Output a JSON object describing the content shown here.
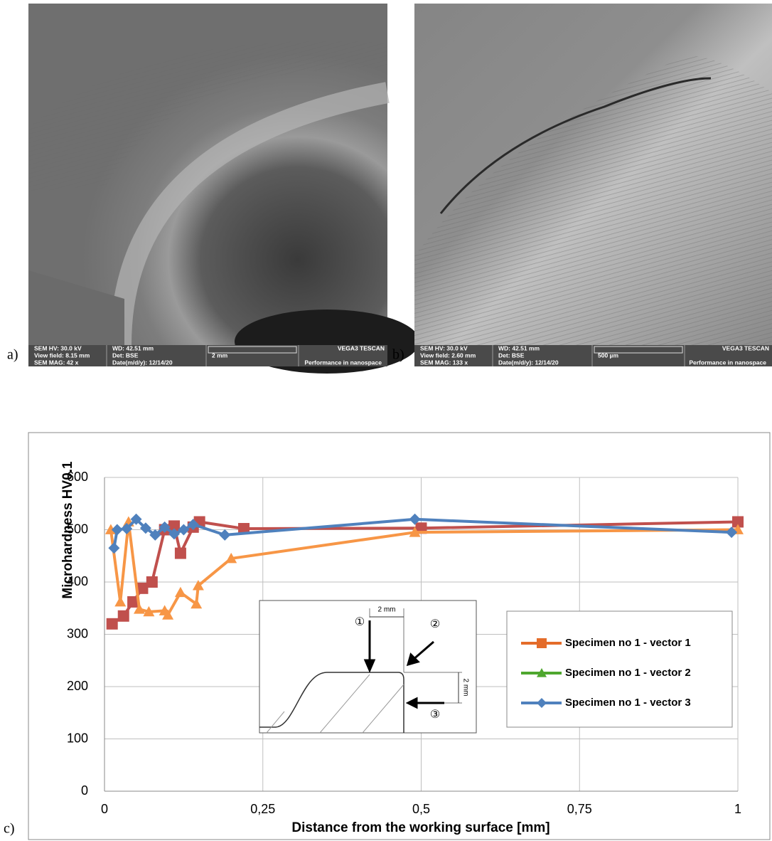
{
  "images": [
    {
      "label": "a)",
      "info": [
        "SEM HV: 30.0 kV",
        "WD: 42.51 mm",
        "VEGA3 TESCAN",
        "View field: 8.15 mm",
        "Det: BSE",
        "2 mm",
        "SEM MAG: 42 x",
        "Date(m/d/y): 12/14/20",
        "Performance in nanospace"
      ]
    },
    {
      "label": "b)",
      "info": [
        "SEM HV: 30.0 kV",
        "WD: 42.51 mm",
        "VEGA3 TESCAN",
        "View field: 2.60 mm",
        "Det: BSE",
        "500 µm",
        "SEM MAG: 133 x",
        "Date(m/d/y): 12/14/20",
        "Performance in nanospace"
      ]
    }
  ],
  "chart_data": {
    "type": "line",
    "label": "c)",
    "x_label": "Distance from the working surface [mm]",
    "y_label": "Microhardness HV0.1",
    "xlim": [
      0,
      1
    ],
    "ylim": [
      0,
      600
    ],
    "xticks": [
      0,
      {
        "value": 0.25,
        "label": "0,25"
      },
      {
        "value": 0.5,
        "label": "0,5"
      },
      {
        "value": 0.75,
        "label": "0,75"
      },
      1
    ],
    "yticks": [
      0,
      100,
      200,
      300,
      400,
      500,
      600
    ],
    "grid": true,
    "legend": "lower right",
    "annotations": [
      "①",
      "②",
      "③",
      "2 mm",
      "2 mm"
    ],
    "series": [
      {
        "name": "Specimen no 1 - vector 1",
        "color": "#c0504d",
        "legend_color": "#e46c2a",
        "marker": "square",
        "x": [
          0.012,
          0.03,
          0.045,
          0.06,
          0.075,
          0.095,
          0.11,
          0.12,
          0.14,
          0.15,
          0.22,
          0.5,
          1.0
        ],
        "values": [
          320,
          335,
          362,
          388,
          400,
          500,
          507,
          455,
          505,
          515,
          502,
          503,
          515
        ]
      },
      {
        "name": "Specimen no 1 - vector 2",
        "color": "#f79646",
        "legend_color": "#4ea72e",
        "marker": "triangle",
        "x": [
          0.01,
          0.025,
          0.038,
          0.055,
          0.07,
          0.095,
          0.1,
          0.12,
          0.145,
          0.148,
          0.2,
          0.49,
          1.0
        ],
        "values": [
          500,
          362,
          515,
          348,
          343,
          345,
          337,
          380,
          358,
          393,
          445,
          495,
          500
        ]
      },
      {
        "name": "Specimen no 1 - vector 3",
        "color": "#4f81bd",
        "legend_color": "#4f81bd",
        "marker": "diamond",
        "x": [
          0.015,
          0.02,
          0.035,
          0.05,
          0.065,
          0.08,
          0.095,
          0.11,
          0.125,
          0.14,
          0.19,
          0.49,
          0.99
        ],
        "values": [
          465,
          500,
          502,
          520,
          503,
          490,
          505,
          492,
          500,
          510,
          490,
          520,
          495
        ]
      }
    ]
  }
}
